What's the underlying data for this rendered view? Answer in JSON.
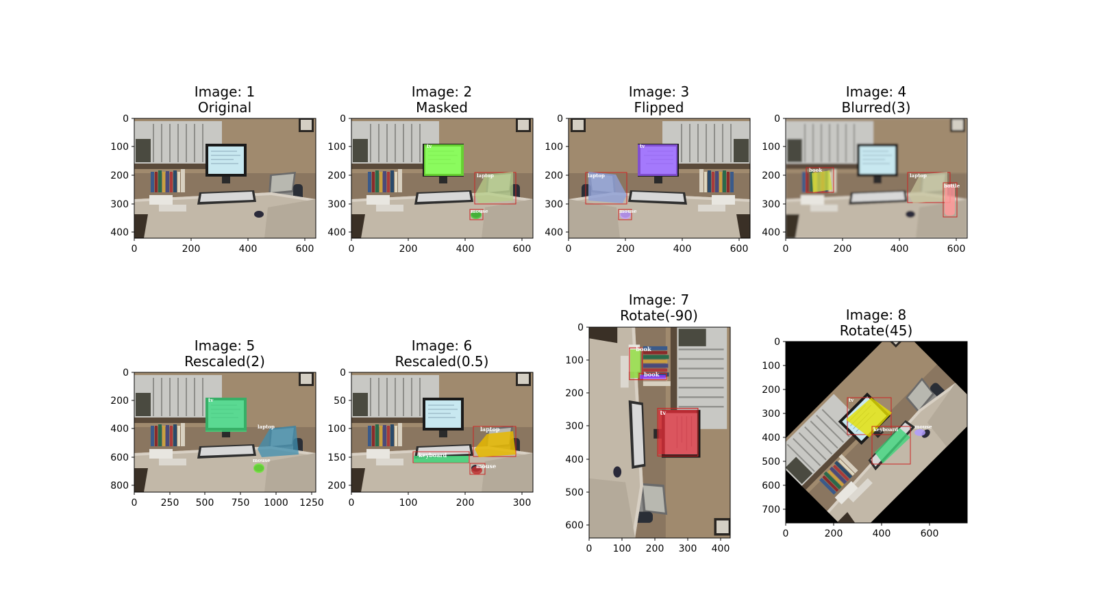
{
  "panels": [
    {
      "id": 1,
      "title1": "Image: 1",
      "title2": "Original",
      "xticks": [
        "0",
        "200",
        "400",
        "600"
      ],
      "yticks": [
        "0",
        "100",
        "200",
        "300",
        "400"
      ],
      "transform": "none",
      "overlays": []
    },
    {
      "id": 2,
      "title1": "Image: 2",
      "title2": "Masked",
      "xticks": [
        "0",
        "200",
        "400",
        "600"
      ],
      "yticks": [
        "0",
        "100",
        "200",
        "300",
        "400"
      ],
      "transform": "none",
      "overlays": [
        {
          "kind": "mask",
          "object": "tv",
          "label": "tv",
          "color": "#7cff3a"
        },
        {
          "kind": "mask-box",
          "object": "laptop",
          "label": "laptop",
          "color": "#b7cf8a",
          "box": "#cc2222"
        },
        {
          "kind": "mask-box",
          "object": "mouse",
          "label": "mouse",
          "color": "#49c83a",
          "box": "#cc2222"
        }
      ]
    },
    {
      "id": 3,
      "title1": "Image: 3",
      "title2": "Flipped",
      "xticks": [
        "0",
        "200",
        "400",
        "600"
      ],
      "yticks": [
        "0",
        "100",
        "200",
        "300",
        "400"
      ],
      "transform": "flip",
      "overlays": [
        {
          "kind": "mask",
          "object": "tv",
          "label": "tv",
          "color": "#9b5cff"
        },
        {
          "kind": "mask-box",
          "object": "laptop",
          "label": "laptop",
          "color": "#8fa0d8",
          "box": "#cc2222"
        },
        {
          "kind": "mask-box",
          "object": "mouse",
          "label": "mouse",
          "color": "#c6a0ff",
          "box": "#cc2222"
        }
      ]
    },
    {
      "id": 4,
      "title1": "Image: 4",
      "title2": "Blurred(3)",
      "xticks": [
        "0",
        "200",
        "400",
        "600"
      ],
      "yticks": [
        "0",
        "100",
        "200",
        "300",
        "400"
      ],
      "transform": "blur",
      "overlays": [
        {
          "kind": "mask-box",
          "object": "book",
          "label": "book",
          "color": "#d2e23a",
          "box": "#cc2222"
        },
        {
          "kind": "mask-box",
          "object": "laptop",
          "label": "laptop",
          "color": "#c9c7a0",
          "box": "#cc2222"
        },
        {
          "kind": "mask-box",
          "object": "bottle",
          "label": "bottle",
          "color": "#ff9a9a",
          "box": "#cc2222"
        }
      ]
    },
    {
      "id": 5,
      "title1": "Image: 5",
      "title2": "Rescaled(2)",
      "xticks": [
        "0",
        "250",
        "500",
        "750",
        "1000",
        "1250"
      ],
      "yticks": [
        "0",
        "200",
        "400",
        "600",
        "800"
      ],
      "transform": "none",
      "overlays": [
        {
          "kind": "mask",
          "object": "tv",
          "label": "tv",
          "color": "#3fd47a"
        },
        {
          "kind": "mask",
          "object": "laptop",
          "label": "laptop",
          "color": "#3f8fb0"
        },
        {
          "kind": "mask",
          "object": "mouse",
          "label": "mouse",
          "color": "#6fe83a"
        }
      ]
    },
    {
      "id": 6,
      "title1": "Image: 6",
      "title2": "Rescaled(0.5)",
      "xticks": [
        "0",
        "100",
        "200",
        "300"
      ],
      "yticks": [
        "0",
        "50",
        "100",
        "150",
        "200"
      ],
      "transform": "none",
      "overlays": [
        {
          "kind": "mask-box",
          "object": "laptop",
          "label": "laptop",
          "color": "#e6b800",
          "box": "#cc2222"
        },
        {
          "kind": "mask-box",
          "object": "keyboard",
          "label": "keyboard",
          "color": "#3fd47a",
          "box": "#cc2222"
        },
        {
          "kind": "mask-box",
          "object": "mouse",
          "label": "mouse",
          "color": "#c03030",
          "box": "#cc2222"
        }
      ]
    },
    {
      "id": 7,
      "title1": "Image: 7",
      "title2": "Rotate(-90)",
      "xticks": [
        "0",
        "100",
        "200",
        "300",
        "400"
      ],
      "yticks": [
        "0",
        "100",
        "200",
        "300",
        "400",
        "500",
        "600"
      ],
      "transform": "rot90",
      "overlays": [
        {
          "kind": "mask-box",
          "object": "tv",
          "label": "tv",
          "color": "#e0303a",
          "box": "#cc2222"
        },
        {
          "kind": "mask-box",
          "object": "book",
          "label": "book",
          "color": "#8cdc3a",
          "box": "#cc2222"
        },
        {
          "kind": "mask-box",
          "object": "book2",
          "label": "book",
          "color": "#8a3aff",
          "box": "#cc2222"
        }
      ]
    },
    {
      "id": 8,
      "title1": "Image: 8",
      "title2": "Rotate(45)",
      "xticks": [
        "0",
        "200",
        "400",
        "600"
      ],
      "yticks": [
        "0",
        "100",
        "200",
        "300",
        "400",
        "500",
        "600",
        "700"
      ],
      "transform": "rot45",
      "overlays": [
        {
          "kind": "mask-box",
          "object": "tv",
          "label": "tv",
          "color": "#e6e000",
          "box": "#cc2222"
        },
        {
          "kind": "mask-box",
          "object": "keyboard",
          "label": "keyboard",
          "color": "#3fd47a",
          "box": "#cc2222"
        },
        {
          "kind": "mask",
          "object": "mouse",
          "label": "mouse",
          "color": "#b09cff"
        }
      ]
    }
  ]
}
